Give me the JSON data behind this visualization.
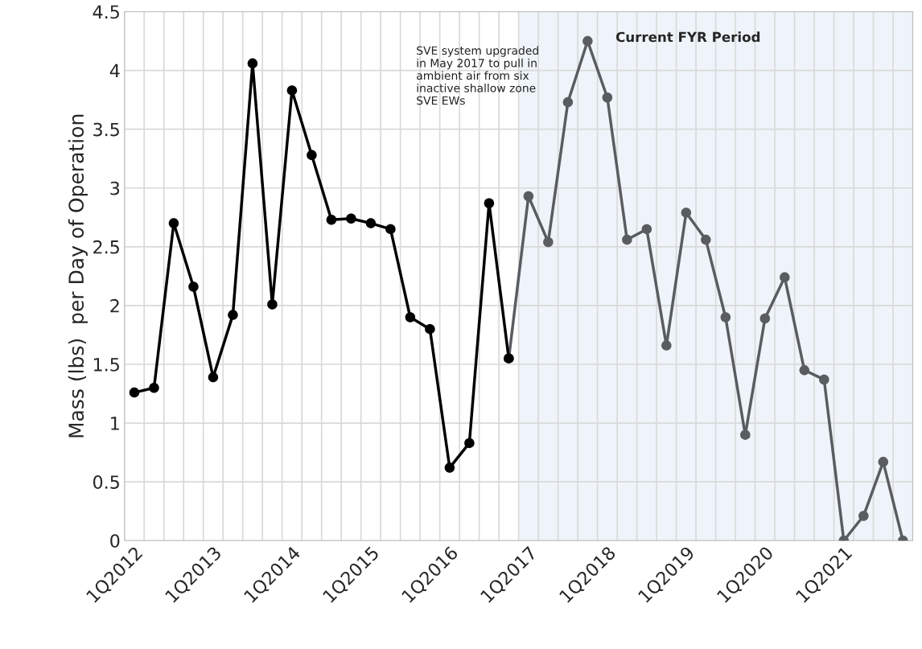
{
  "chart_data": {
    "type": "line",
    "ylabel": "Mass (lbs)  per Day of Operation",
    "categories": [
      "1Q2012",
      null,
      null,
      null,
      "1Q2013",
      null,
      null,
      null,
      "1Q2014",
      null,
      null,
      null,
      "1Q2015",
      null,
      null,
      null,
      "1Q2016",
      null,
      null,
      null,
      "1Q2017",
      null,
      null,
      null,
      "1Q2018",
      null,
      null,
      null,
      "1Q2019",
      null,
      null,
      null,
      "1Q2020",
      null,
      null,
      null,
      "1Q2021",
      null,
      null,
      null
    ],
    "series": [
      {
        "color": "#000000",
        "values": [
          1.26,
          1.3,
          2.7,
          2.16,
          1.39,
          1.92,
          4.06,
          2.01,
          3.83,
          3.28,
          2.73,
          2.74,
          2.7,
          2.65,
          1.9,
          1.8,
          0.62,
          0.83,
          2.87,
          1.55,
          null,
          null,
          null,
          null,
          null,
          null,
          null,
          null,
          null,
          null,
          null,
          null,
          null,
          null,
          null,
          null,
          null,
          null,
          null,
          null
        ]
      },
      {
        "color": "#595c60",
        "values": [
          null,
          null,
          null,
          null,
          null,
          null,
          null,
          null,
          null,
          null,
          null,
          null,
          null,
          null,
          null,
          null,
          null,
          null,
          null,
          1.55,
          2.93,
          2.54,
          3.73,
          4.25,
          3.77,
          2.56,
          2.65,
          1.66,
          2.79,
          2.56,
          1.9,
          0.9,
          1.89,
          2.24,
          1.45,
          1.37,
          0,
          0.21,
          0.67,
          0
        ]
      }
    ],
    "ylim": [
      0,
      4.5
    ],
    "yticks": [
      0,
      0.5,
      1,
      1.5,
      2,
      2.5,
      3,
      3.5,
      4,
      4.5
    ],
    "grid": true,
    "marker": "circle",
    "line_style": "solid",
    "annotations": [
      "Current FYR Period",
      "SVE system upgraded\nin May 2017 to pull in\nambient air from six\ninactive shallow zone\nSVE EWs"
    ]
  }
}
